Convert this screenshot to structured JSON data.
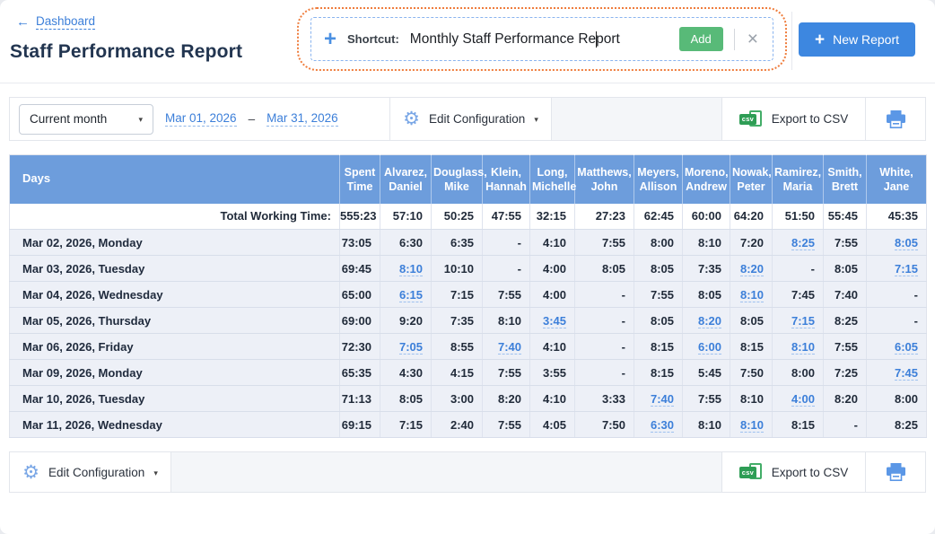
{
  "icons": {
    "back_arrow": "←",
    "plus": "+",
    "caret": "▾",
    "gear": "⚙",
    "close": "×"
  },
  "page": {
    "back_link": "Dashboard",
    "title": "Staff Performance Report"
  },
  "shortcut": {
    "label": "Shortcut:",
    "value": "Monthly Staff Performance Report",
    "add_label": "Add"
  },
  "header": {
    "new_report_label": "New Report"
  },
  "toolbar": {
    "period_select": "Current month",
    "date_from": "Mar 01, 2026",
    "date_sep": "–",
    "date_to": "Mar 31, 2026",
    "edit_config_label": "Edit Configuration",
    "export_csv_label": "Export to CSV",
    "csv_badge": "csv"
  },
  "footerbar": {
    "edit_config_label": "Edit Configuration",
    "export_csv_label": "Export to CSV",
    "csv_badge": "csv"
  },
  "table": {
    "columns": [
      "Days",
      "Spent Time",
      "Alvarez, Daniel",
      "Douglass, Mike",
      "Klein, Hannah",
      "Long, Michelle",
      "Matthews, John",
      "Meyers, Allison",
      "Moreno, Andrew",
      "Nowak, Peter",
      "Ramirez, Maria",
      "Smith, Brett",
      "White, Jane"
    ],
    "total_label": "Total Working Time:",
    "total": [
      "555:23",
      "57:10",
      "50:25",
      "47:55",
      "32:15",
      "27:23",
      "62:45",
      "60:00",
      "64:20",
      "51:50",
      "55:45",
      "45:35"
    ],
    "rows": [
      {
        "day": "Mar 02, 2026, Monday",
        "values": [
          {
            "v": "73:05"
          },
          {
            "v": "6:30"
          },
          {
            "v": "6:35"
          },
          {
            "v": "-"
          },
          {
            "v": "4:10"
          },
          {
            "v": "7:55"
          },
          {
            "v": "8:00"
          },
          {
            "v": "8:10"
          },
          {
            "v": "7:20"
          },
          {
            "v": "8:25",
            "link": true
          },
          {
            "v": "7:55"
          },
          {
            "v": "8:05",
            "link": true
          }
        ]
      },
      {
        "day": "Mar 03, 2026, Tuesday",
        "values": [
          {
            "v": "69:45"
          },
          {
            "v": "8:10",
            "link": true
          },
          {
            "v": "10:10"
          },
          {
            "v": "-"
          },
          {
            "v": "4:00"
          },
          {
            "v": "8:05"
          },
          {
            "v": "8:05"
          },
          {
            "v": "7:35"
          },
          {
            "v": "8:20",
            "link": true
          },
          {
            "v": "-"
          },
          {
            "v": "8:05"
          },
          {
            "v": "7:15",
            "link": true
          }
        ]
      },
      {
        "day": "Mar 04, 2026, Wednesday",
        "values": [
          {
            "v": "65:00"
          },
          {
            "v": "6:15",
            "link": true
          },
          {
            "v": "7:15"
          },
          {
            "v": "7:55"
          },
          {
            "v": "4:00"
          },
          {
            "v": "-"
          },
          {
            "v": "7:55"
          },
          {
            "v": "8:05"
          },
          {
            "v": "8:10",
            "link": true
          },
          {
            "v": "7:45"
          },
          {
            "v": "7:40"
          },
          {
            "v": "-"
          }
        ]
      },
      {
        "day": "Mar 05, 2026, Thursday",
        "values": [
          {
            "v": "69:00"
          },
          {
            "v": "9:20"
          },
          {
            "v": "7:35"
          },
          {
            "v": "8:10"
          },
          {
            "v": "3:45",
            "link": true
          },
          {
            "v": "-"
          },
          {
            "v": "8:05"
          },
          {
            "v": "8:20",
            "link": true
          },
          {
            "v": "8:05"
          },
          {
            "v": "7:15",
            "link": true
          },
          {
            "v": "8:25"
          },
          {
            "v": "-"
          }
        ]
      },
      {
        "day": "Mar 06, 2026, Friday",
        "values": [
          {
            "v": "72:30"
          },
          {
            "v": "7:05",
            "link": true
          },
          {
            "v": "8:55"
          },
          {
            "v": "7:40",
            "link": true
          },
          {
            "v": "4:10"
          },
          {
            "v": "-"
          },
          {
            "v": "8:15"
          },
          {
            "v": "6:00",
            "link": true
          },
          {
            "v": "8:15"
          },
          {
            "v": "8:10",
            "link": true
          },
          {
            "v": "7:55"
          },
          {
            "v": "6:05",
            "link": true
          }
        ]
      },
      {
        "day": "Mar 09, 2026, Monday",
        "values": [
          {
            "v": "65:35"
          },
          {
            "v": "4:30"
          },
          {
            "v": "4:15"
          },
          {
            "v": "7:55"
          },
          {
            "v": "3:55"
          },
          {
            "v": "-"
          },
          {
            "v": "8:15"
          },
          {
            "v": "5:45"
          },
          {
            "v": "7:50"
          },
          {
            "v": "8:00"
          },
          {
            "v": "7:25"
          },
          {
            "v": "7:45",
            "link": true
          }
        ]
      },
      {
        "day": "Mar 10, 2026, Tuesday",
        "values": [
          {
            "v": "71:13"
          },
          {
            "v": "8:05"
          },
          {
            "v": "3:00"
          },
          {
            "v": "8:20"
          },
          {
            "v": "4:10"
          },
          {
            "v": "3:33"
          },
          {
            "v": "7:40",
            "link": true
          },
          {
            "v": "7:55"
          },
          {
            "v": "8:10"
          },
          {
            "v": "4:00",
            "link": true
          },
          {
            "v": "8:20"
          },
          {
            "v": "8:00"
          }
        ]
      },
      {
        "day": "Mar 11, 2026, Wednesday",
        "values": [
          {
            "v": "69:15"
          },
          {
            "v": "7:15"
          },
          {
            "v": "2:40"
          },
          {
            "v": "7:55"
          },
          {
            "v": "4:05"
          },
          {
            "v": "7:50"
          },
          {
            "v": "6:30",
            "link": true
          },
          {
            "v": "8:10"
          },
          {
            "v": "8:10",
            "link": true
          },
          {
            "v": "8:15"
          },
          {
            "v": "-"
          },
          {
            "v": "8:25"
          }
        ]
      }
    ]
  },
  "colors": {
    "header_blue": "#6d9ddc",
    "link_blue": "#3c7fd9",
    "button_blue": "#3d87e0",
    "add_green": "#58ba78",
    "csv_green": "#2e9d55",
    "orange_border": "#ef7d3d",
    "row_bg": "#edf0f7",
    "title_text": "#223550"
  }
}
